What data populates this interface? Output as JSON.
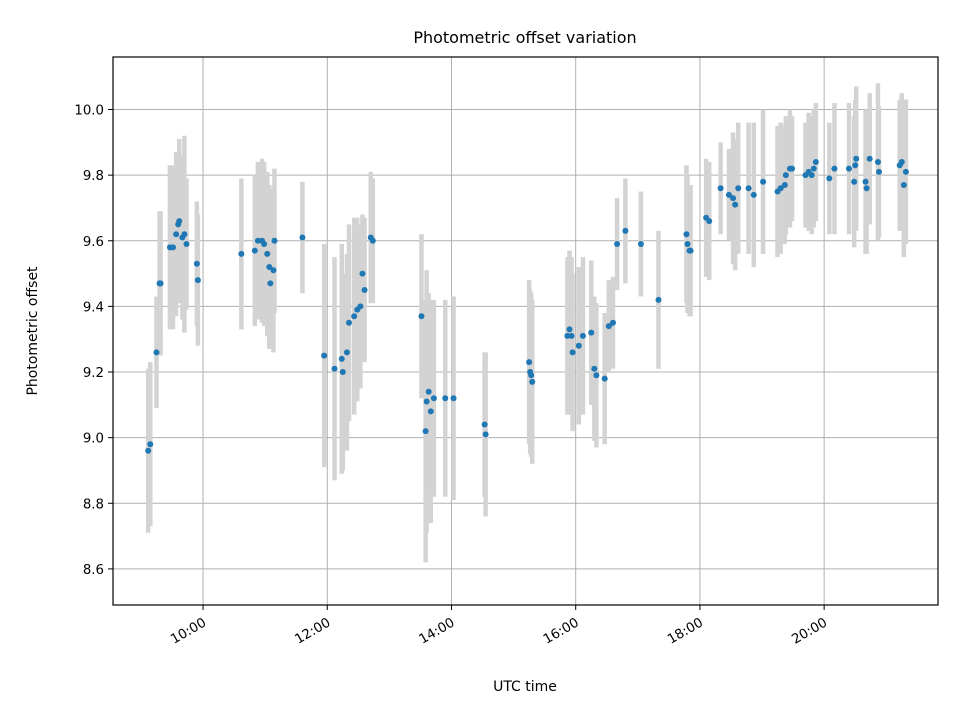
{
  "chart_data": {
    "type": "scatter",
    "title": "Photometric offset variation",
    "xlabel": "UTC time",
    "ylabel": "Photometric offset",
    "x_ticks": [
      "10:00",
      "12:00",
      "14:00",
      "16:00",
      "18:00",
      "20:00"
    ],
    "y_ticks": [
      "8.6",
      "8.8",
      "9.0",
      "9.2",
      "9.4",
      "9.6",
      "9.8",
      "10.0"
    ],
    "xlim": [
      "08:33",
      "21:50"
    ],
    "ylim": [
      8.49,
      10.16
    ],
    "grid": true,
    "colors": {
      "point": "#1f77b4",
      "errorbar": "#d3d3d3"
    },
    "series": [
      {
        "x": [
          "09:07",
          "09:09",
          "09:15",
          "09:18",
          "09:19",
          "09:28",
          "09:31",
          "09:34",
          "09:36",
          "09:37",
          "09:40",
          "09:42",
          "09:44",
          "09:54",
          "09:55",
          "10:37",
          "10:50",
          "10:53",
          "10:57",
          "10:59",
          "11:02",
          "11:04",
          "11:05",
          "11:08",
          "11:09",
          "11:36",
          "11:57",
          "12:07",
          "12:14",
          "12:15",
          "12:19",
          "12:21",
          "12:26",
          "12:29",
          "12:32",
          "12:34",
          "12:36",
          "12:42",
          "12:44",
          "13:31",
          "13:35",
          "13:36",
          "13:38",
          "13:40",
          "13:43",
          "13:54",
          "14:02",
          "14:32",
          "14:33",
          "15:15",
          "15:16",
          "15:17",
          "15:18",
          "15:52",
          "15:54",
          "15:56",
          "15:57",
          "16:03",
          "16:07",
          "16:15",
          "16:18",
          "16:20",
          "16:28",
          "16:32",
          "16:36",
          "16:40",
          "16:48",
          "17:03",
          "17:20",
          "17:47",
          "17:48",
          "17:50",
          "17:51",
          "18:06",
          "18:09",
          "18:20",
          "18:28",
          "18:32",
          "18:34",
          "18:37",
          "18:47",
          "18:52",
          "19:01",
          "19:15",
          "19:18",
          "19:22",
          "19:23",
          "19:27",
          "19:29",
          "19:42",
          "19:45",
          "19:48",
          "19:50",
          "19:52",
          "20:05",
          "20:10",
          "20:24",
          "20:29",
          "20:30",
          "20:31",
          "20:40",
          "20:41",
          "20:44",
          "20:52",
          "20:53",
          "21:13",
          "21:15",
          "21:17",
          "21:19"
        ],
        "y": [
          8.96,
          8.98,
          9.26,
          9.47,
          9.47,
          9.58,
          9.58,
          9.62,
          9.65,
          9.66,
          9.61,
          9.62,
          9.59,
          9.53,
          9.48,
          9.56,
          9.57,
          9.6,
          9.6,
          9.59,
          9.56,
          9.52,
          9.47,
          9.51,
          9.6,
          9.61,
          9.25,
          9.21,
          9.24,
          9.2,
          9.26,
          9.35,
          9.37,
          9.39,
          9.4,
          9.5,
          9.45,
          9.61,
          9.6,
          9.37,
          9.02,
          9.11,
          9.14,
          9.08,
          9.12,
          9.12,
          9.12,
          9.04,
          9.01,
          9.23,
          9.2,
          9.19,
          9.17,
          9.31,
          9.33,
          9.31,
          9.26,
          9.28,
          9.31,
          9.32,
          9.21,
          9.19,
          9.18,
          9.34,
          9.35,
          9.59,
          9.63,
          9.59,
          9.42,
          9.62,
          9.59,
          9.57,
          9.57,
          9.67,
          9.66,
          9.76,
          9.74,
          9.73,
          9.71,
          9.76,
          9.76,
          9.74,
          9.78,
          9.75,
          9.76,
          9.77,
          9.8,
          9.82,
          9.82,
          9.8,
          9.81,
          9.8,
          9.82,
          9.84,
          9.79,
          9.82,
          9.82,
          9.78,
          9.83,
          9.85,
          9.78,
          9.76,
          9.85,
          9.84,
          9.81,
          9.83,
          9.84,
          9.77,
          9.81
        ],
        "err": [
          0.25,
          0.25,
          0.17,
          0.22,
          0.22,
          0.25,
          0.25,
          0.25,
          0.2,
          0.25,
          0.25,
          0.3,
          0.2,
          0.19,
          0.2,
          0.23,
          0.23,
          0.24,
          0.25,
          0.25,
          0.25,
          0.25,
          0.2,
          0.25,
          0.22,
          0.17,
          0.34,
          0.34,
          0.35,
          0.3,
          0.3,
          0.3,
          0.3,
          0.28,
          0.25,
          0.18,
          0.22,
          0.2,
          0.19,
          0.25,
          0.4,
          0.4,
          0.3,
          0.34,
          0.3,
          0.3,
          0.31,
          0.22,
          0.25,
          0.25,
          0.25,
          0.25,
          0.25,
          0.24,
          0.24,
          0.24,
          0.24,
          0.24,
          0.24,
          0.22,
          0.22,
          0.22,
          0.2,
          0.14,
          0.14,
          0.14,
          0.16,
          0.16,
          0.21,
          0.21,
          0.21,
          0.2,
          0.2,
          0.18,
          0.18,
          0.14,
          0.14,
          0.2,
          0.2,
          0.2,
          0.2,
          0.22,
          0.22,
          0.2,
          0.2,
          0.18,
          0.18,
          0.18,
          0.16,
          0.16,
          0.18,
          0.18,
          0.18,
          0.18,
          0.17,
          0.2,
          0.2,
          0.2,
          0.2,
          0.22,
          0.22,
          0.2,
          0.2,
          0.24,
          0.2,
          0.2,
          0.21,
          0.22,
          0.22
        ]
      }
    ]
  }
}
